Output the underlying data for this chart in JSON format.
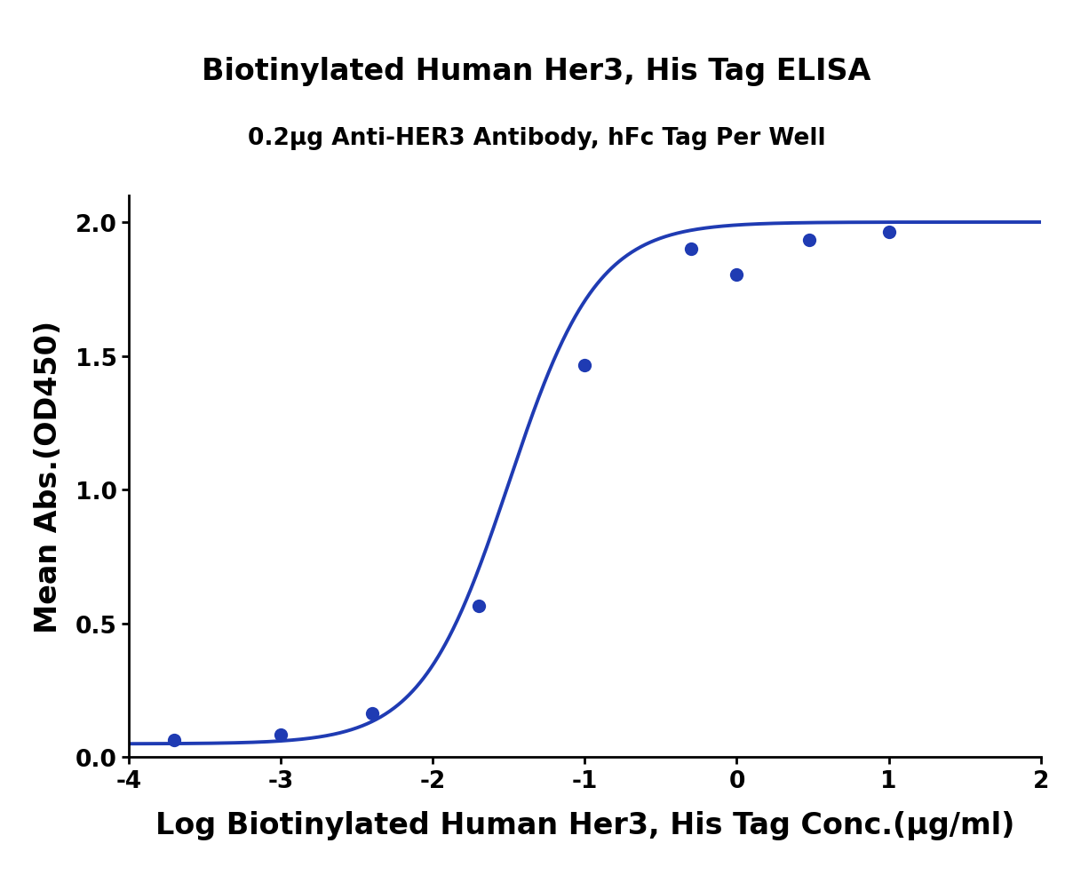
{
  "title": "Biotinylated Human Her3, His Tag ELISA",
  "subtitle": "0.2μg Anti-HER3 Antibody, hFc Tag Per Well",
  "xlabel": "Log Biotinylated Human Her3, His Tag Conc.(μg/ml)",
  "ylabel": "Mean Abs.(OD450)",
  "data_x": [
    -3.699,
    -3.0,
    -2.398,
    -1.699,
    -1.0,
    -0.301,
    0.0,
    0.477,
    1.0
  ],
  "data_y": [
    0.065,
    0.085,
    0.165,
    0.565,
    1.465,
    1.9,
    1.805,
    1.935,
    1.965
  ],
  "xlim": [
    -4,
    2
  ],
  "ylim": [
    0.0,
    2.1
  ],
  "xticks": [
    -4,
    -3,
    -2,
    -1,
    0,
    1,
    2
  ],
  "yticks": [
    0.0,
    0.5,
    1.0,
    1.5,
    2.0
  ],
  "line_color": "#1f3bb3",
  "dot_color": "#1f3bb3",
  "background_color": "#ffffff",
  "title_fontsize": 24,
  "subtitle_fontsize": 19,
  "axis_label_fontsize": 24,
  "tick_fontsize": 19,
  "linewidth": 2.8,
  "markersize": 11
}
